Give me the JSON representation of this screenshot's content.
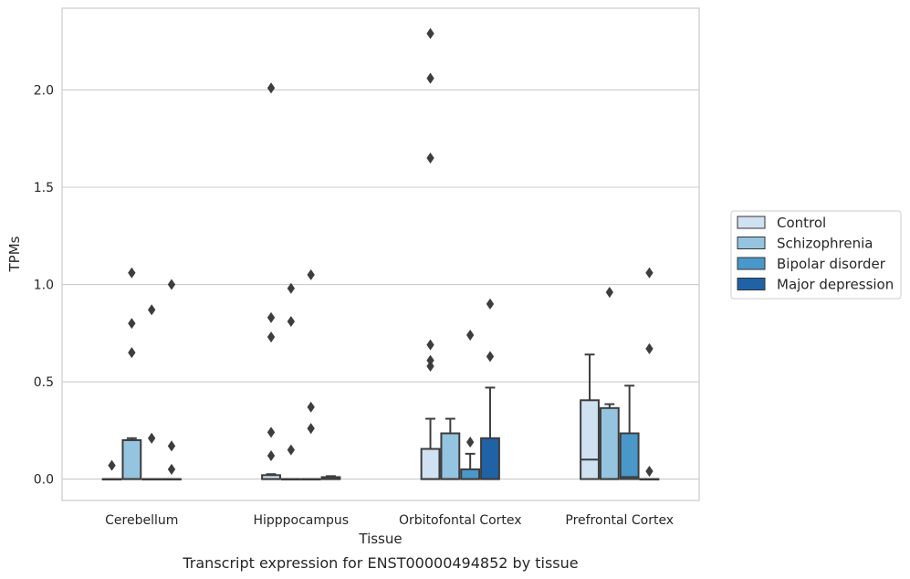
{
  "chart_data": {
    "type": "box",
    "caption": "Transcript expression for ENST00000494852 by tissue",
    "xlabel": "Tissue",
    "ylabel": "TPMs",
    "ylim": [
      -0.11,
      2.42
    ],
    "yticks": [
      0.0,
      0.5,
      1.0,
      1.5,
      2.0
    ],
    "ytick_labels": [
      "0.0",
      "0.5",
      "1.0",
      "1.5",
      "2.0"
    ],
    "categories": [
      "Cerebellum",
      "Hipppocampus",
      "Orbitofontal Cortex",
      "Prefrontal Cortex"
    ],
    "grid": true,
    "legend_position": "right",
    "series": [
      {
        "name": "Control",
        "color": "#d0e1f2",
        "boxes": [
          {
            "q1": 0.0,
            "median": 0.0,
            "q3": 0.0,
            "whislo": 0.0,
            "whishi": 0.0,
            "fliers": [
              0.07
            ]
          },
          {
            "q1": 0.0,
            "median": 0.0,
            "q3": 0.02,
            "whislo": 0.0,
            "whishi": 0.025,
            "fliers": [
              0.12,
              0.24,
              0.73,
              0.83,
              2.01
            ]
          },
          {
            "q1": 0.0,
            "median": 0.0,
            "q3": 0.155,
            "whislo": 0.0,
            "whishi": 0.31,
            "fliers": [
              0.58,
              0.61,
              0.69,
              1.65,
              2.06,
              2.29
            ]
          },
          {
            "q1": 0.0,
            "median": 0.1,
            "q3": 0.405,
            "whislo": 0.0,
            "whishi": 0.64,
            "fliers": []
          }
        ]
      },
      {
        "name": "Schizophrenia",
        "color": "#94c4df",
        "boxes": [
          {
            "q1": 0.0,
            "median": 0.0,
            "q3": 0.2,
            "whislo": 0.0,
            "whishi": 0.21,
            "fliers": [
              0.65,
              0.8,
              1.06
            ]
          },
          {
            "q1": 0.0,
            "median": 0.0,
            "q3": 0.0,
            "whislo": 0.0,
            "whishi": 0.0,
            "fliers": [
              0.15,
              0.81,
              0.98
            ]
          },
          {
            "q1": 0.0,
            "median": 0.0,
            "q3": 0.235,
            "whislo": 0.0,
            "whishi": 0.31,
            "fliers": []
          },
          {
            "q1": 0.0,
            "median": 0.0,
            "q3": 0.365,
            "whislo": 0.0,
            "whishi": 0.385,
            "fliers": [
              0.96
            ]
          }
        ]
      },
      {
        "name": "Bipolar disorder",
        "color": "#4a98c9",
        "boxes": [
          {
            "q1": 0.0,
            "median": 0.0,
            "q3": 0.0,
            "whislo": 0.0,
            "whishi": 0.0,
            "fliers": [
              0.21,
              0.87
            ]
          },
          {
            "q1": 0.0,
            "median": 0.0,
            "q3": 0.0,
            "whislo": 0.0,
            "whishi": 0.0,
            "fliers": [
              0.26,
              0.37,
              1.05
            ]
          },
          {
            "q1": 0.0,
            "median": 0.0,
            "q3": 0.05,
            "whislo": 0.0,
            "whishi": 0.13,
            "fliers": [
              0.19,
              0.74
            ]
          },
          {
            "q1": 0.0,
            "median": 0.01,
            "q3": 0.235,
            "whislo": 0.0,
            "whishi": 0.48,
            "fliers": []
          }
        ]
      },
      {
        "name": "Major depression",
        "color": "#2062a6",
        "boxes": [
          {
            "q1": 0.0,
            "median": 0.0,
            "q3": 0.0,
            "whislo": 0.0,
            "whishi": 0.0,
            "fliers": [
              0.05,
              0.17,
              1.0
            ]
          },
          {
            "q1": 0.0,
            "median": 0.0,
            "q3": 0.01,
            "whislo": 0.0,
            "whishi": 0.015,
            "fliers": []
          },
          {
            "q1": 0.0,
            "median": 0.0,
            "q3": 0.21,
            "whislo": 0.0,
            "whishi": 0.47,
            "fliers": [
              0.63,
              0.9
            ]
          },
          {
            "q1": 0.0,
            "median": 0.0,
            "q3": 0.0,
            "whislo": 0.0,
            "whishi": 0.0,
            "fliers": [
              0.04,
              0.67,
              1.06
            ]
          }
        ]
      }
    ]
  }
}
